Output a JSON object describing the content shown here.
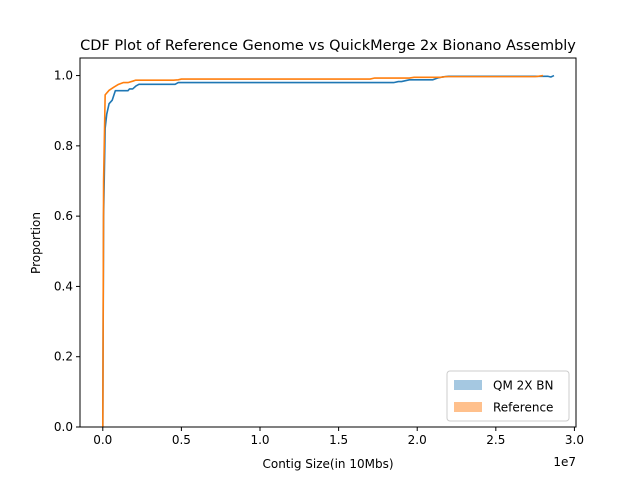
{
  "chart_data": {
    "type": "line",
    "title": "CDF Plot of Reference Genome vs QuickMerge 2x Bionano Assembly",
    "xlabel": "Contig Size(in 10Mbs)",
    "ylabel": "Proportion",
    "x_offset_label": "1e7",
    "xlim": [
      -1450000,
      30100000
    ],
    "ylim": [
      0.0,
      1.05
    ],
    "xticks": [
      0,
      5000000,
      10000000,
      15000000,
      20000000,
      25000000,
      30000000
    ],
    "xtick_labels": [
      "0.0",
      "0.5",
      "1.0",
      "1.5",
      "2.0",
      "2.5",
      "3.0"
    ],
    "yticks": [
      0.0,
      0.2,
      0.4,
      0.6,
      0.8,
      1.0
    ],
    "ytick_labels": [
      "0.0",
      "0.2",
      "0.4",
      "0.6",
      "0.8",
      "1.0"
    ],
    "grid": false,
    "legend_position": "lower-right",
    "series": [
      {
        "name": "QM 2X BN",
        "color": "#1f77b4",
        "legend_color": "#a5c8e1",
        "x": [
          0,
          50000,
          150000,
          250000,
          400000,
          600000,
          800000,
          1000000,
          1300000,
          1600000,
          1700000,
          1900000,
          2100000,
          2300000,
          4500000,
          4600000,
          4800000,
          5000000,
          18500000,
          18800000,
          19000000,
          19500000,
          19700000,
          21000000,
          21300000,
          21600000,
          22000000,
          28000000,
          28300000,
          28500000,
          28700000
        ],
        "y": [
          0.0,
          0.6,
          0.85,
          0.89,
          0.92,
          0.93,
          0.957,
          0.957,
          0.957,
          0.957,
          0.962,
          0.962,
          0.97,
          0.975,
          0.975,
          0.975,
          0.98,
          0.98,
          0.98,
          0.983,
          0.983,
          0.988,
          0.988,
          0.988,
          0.993,
          0.996,
          0.998,
          0.998,
          0.998,
          0.996,
          1.0
        ]
      },
      {
        "name": "Reference",
        "color": "#ff7f0e",
        "legend_color": "#ffc08c",
        "x": [
          0,
          50000,
          150000,
          400000,
          700000,
          1000000,
          1300000,
          1600000,
          1900000,
          2100000,
          4500000,
          4800000,
          5000000,
          17000000,
          17300000,
          19500000,
          19800000,
          21500000,
          21800000,
          27500000,
          27700000,
          28000000
        ],
        "y": [
          0.0,
          0.7,
          0.945,
          0.958,
          0.967,
          0.975,
          0.98,
          0.98,
          0.984,
          0.987,
          0.987,
          0.988,
          0.99,
          0.99,
          0.993,
          0.993,
          0.995,
          0.995,
          0.997,
          0.997,
          0.998,
          1.0
        ]
      }
    ]
  }
}
